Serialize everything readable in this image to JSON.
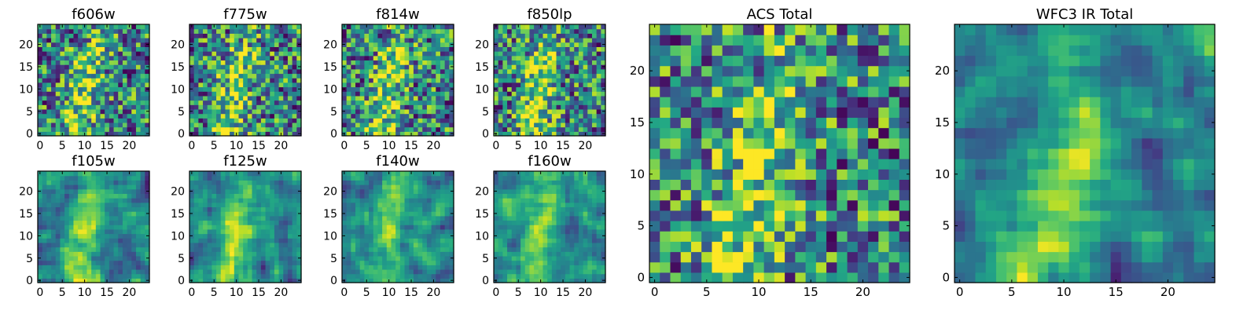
{
  "chart_data": [
    {
      "type": "heatmap",
      "title": "f606w",
      "size": "small",
      "xticks": [
        0,
        5,
        10,
        15,
        20
      ],
      "yticks": [
        0,
        5,
        10,
        15,
        20
      ],
      "xlim": [
        0,
        24
      ],
      "ylim": [
        0,
        24
      ],
      "grid": false,
      "colormap": "viridis",
      "seed": 11
    },
    {
      "type": "heatmap",
      "title": "f775w",
      "size": "small",
      "xticks": [
        0,
        5,
        10,
        15,
        20
      ],
      "yticks": [
        0,
        5,
        10,
        15,
        20
      ],
      "xlim": [
        0,
        24
      ],
      "ylim": [
        0,
        24
      ],
      "grid": false,
      "colormap": "viridis",
      "seed": 23
    },
    {
      "type": "heatmap",
      "title": "f814w",
      "size": "small",
      "xticks": [
        0,
        5,
        10,
        15,
        20
      ],
      "yticks": [
        0,
        5,
        10,
        15,
        20
      ],
      "xlim": [
        0,
        24
      ],
      "ylim": [
        0,
        24
      ],
      "grid": false,
      "colormap": "viridis",
      "seed": 37
    },
    {
      "type": "heatmap",
      "title": "f850lp",
      "size": "small",
      "xticks": [
        0,
        5,
        10,
        15,
        20
      ],
      "yticks": [
        0,
        5,
        10,
        15,
        20
      ],
      "xlim": [
        0,
        24
      ],
      "ylim": [
        0,
        24
      ],
      "grid": false,
      "colormap": "viridis",
      "seed": 41
    },
    {
      "type": "heatmap",
      "title": "f105w",
      "size": "small",
      "xticks": [
        0,
        5,
        10,
        15,
        20
      ],
      "yticks": [
        0,
        5,
        10,
        15,
        20
      ],
      "xlim": [
        0,
        24
      ],
      "ylim": [
        0,
        24
      ],
      "grid": false,
      "colormap": "viridis",
      "seed": 53
    },
    {
      "type": "heatmap",
      "title": "f125w",
      "size": "small",
      "xticks": [
        0,
        5,
        10,
        15,
        20
      ],
      "yticks": [
        0,
        5,
        10,
        15,
        20
      ],
      "xlim": [
        0,
        24
      ],
      "ylim": [
        0,
        24
      ],
      "grid": false,
      "colormap": "viridis",
      "seed": 67
    },
    {
      "type": "heatmap",
      "title": "f140w",
      "size": "small",
      "xticks": [
        0,
        5,
        10,
        15,
        20
      ],
      "yticks": [
        0,
        5,
        10,
        15,
        20
      ],
      "xlim": [
        0,
        24
      ],
      "ylim": [
        0,
        24
      ],
      "grid": false,
      "colormap": "viridis",
      "seed": 79
    },
    {
      "type": "heatmap",
      "title": "f160w",
      "size": "small",
      "xticks": [
        0,
        5,
        10,
        15,
        20
      ],
      "yticks": [
        0,
        5,
        10,
        15,
        20
      ],
      "xlim": [
        0,
        24
      ],
      "ylim": [
        0,
        24
      ],
      "grid": false,
      "colormap": "viridis",
      "seed": 83
    },
    {
      "type": "heatmap",
      "title": "ACS Total",
      "size": "large",
      "xticks": [
        0,
        5,
        10,
        15,
        20
      ],
      "yticks": [
        0,
        5,
        10,
        15,
        20
      ],
      "xlim": [
        0,
        24
      ],
      "ylim": [
        0,
        24
      ],
      "grid": false,
      "colormap": "viridis",
      "seed": 97
    },
    {
      "type": "heatmap",
      "title": "WFC3 IR Total",
      "size": "large",
      "xticks": [
        0,
        5,
        10,
        15,
        20
      ],
      "yticks": [
        0,
        5,
        10,
        15,
        20
      ],
      "xlim": [
        0,
        24
      ],
      "ylim": [
        0,
        24
      ],
      "grid": false,
      "colormap": "viridis",
      "seed": 101
    }
  ],
  "colors": {
    "viridis_dark": "#440154",
    "viridis_mid_dark": "#3b528b",
    "viridis_mid": "#21918c",
    "viridis_mid_light": "#5ec962",
    "viridis_light": "#fde725",
    "axis": "#000000",
    "background": "#ffffff"
  }
}
